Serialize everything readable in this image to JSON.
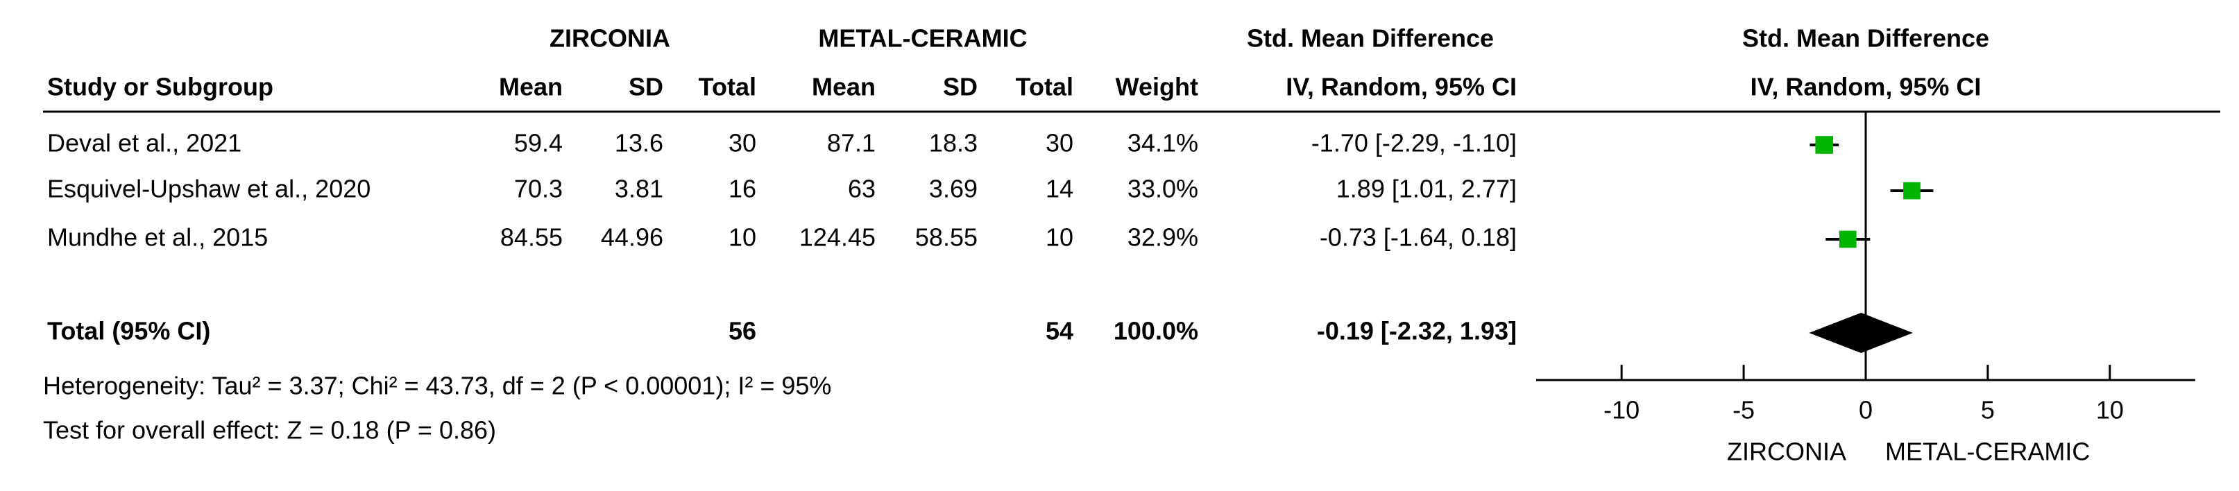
{
  "chart_data": {
    "type": "forest",
    "group_headers": {
      "experimental": "ZIRCONIA",
      "control": "METAL-CERAMIC",
      "effect": "Std. Mean Difference",
      "plot": "Std. Mean Difference"
    },
    "column_headers": {
      "study": "Study or Subgroup",
      "mean1": "Mean",
      "sd1": "SD",
      "total1": "Total",
      "mean2": "Mean",
      "sd2": "SD",
      "total2": "Total",
      "weight": "Weight",
      "effect": "IV, Random, 95% CI",
      "plot": "IV, Random, 95% CI"
    },
    "color": "#00b400",
    "studies": [
      {
        "name": "Deval et al., 2021",
        "mean1": 59.4,
        "sd1": 13.6,
        "total1": 30,
        "mean2": 87.1,
        "sd2": 18.3,
        "total2": 30,
        "weight": 34.1,
        "weight_label": "34.1%",
        "smd": -1.7,
        "ci_low": -2.29,
        "ci_high": -1.1,
        "ci_label": "-1.70 [-2.29, -1.10]"
      },
      {
        "name": "Esquivel-Upshaw et al., 2020",
        "mean1": 70.3,
        "sd1": 3.81,
        "total1": 16,
        "mean2": 63,
        "sd2": 3.69,
        "total2": 14,
        "weight": 33.0,
        "weight_label": "33.0%",
        "smd": 1.89,
        "ci_low": 1.01,
        "ci_high": 2.77,
        "ci_label": "1.89 [1.01, 2.77]"
      },
      {
        "name": "Mundhe et al., 2015",
        "mean1": 84.55,
        "sd1": 44.96,
        "total1": 10,
        "mean2": 124.45,
        "sd2": 58.55,
        "total2": 10,
        "weight": 32.9,
        "weight_label": "32.9%",
        "smd": -0.73,
        "ci_low": -1.64,
        "ci_high": 0.18,
        "ci_label": "-0.73 [-1.64, 0.18]"
      }
    ],
    "total": {
      "name": "Total (95% CI)",
      "total1": 56,
      "total2": 54,
      "weight": 100,
      "weight_label": "100.0%",
      "smd": -0.19,
      "ci_low": -2.32,
      "ci_high": 1.93,
      "ci_label": "-0.19 [-2.32, 1.93]"
    },
    "heterogeneity": "Heterogeneity: Tau² = 3.37; Chi² = 43.73, df = 2 (P < 0.00001); I² = 95%",
    "overall_effect": "Test for overall effect: Z = 0.18 (P = 0.86)",
    "xlim": [
      -13.5,
      13.5
    ],
    "xticks": [
      -10,
      -5,
      0,
      5,
      10
    ],
    "xlabels": {
      "left": "ZIRCONIA",
      "right": "METAL-CERAMIC"
    }
  }
}
